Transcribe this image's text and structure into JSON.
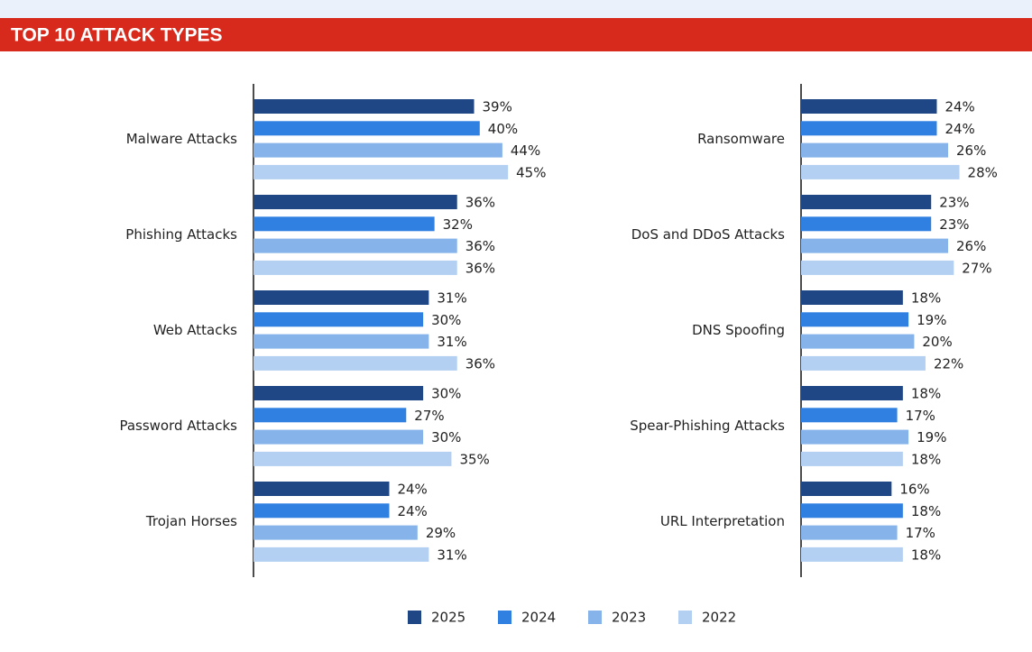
{
  "title": "TOP 10 ATTACK TYPES",
  "chart_data": [
    {
      "type": "barh",
      "categories": [
        "Malware Attacks",
        "Phishing Attacks",
        "Web Attacks",
        "Password Attacks",
        "Trojan Horses"
      ],
      "series": [
        {
          "name": "2025",
          "color": "#1f4785",
          "values": [
            39,
            36,
            31,
            30,
            24
          ],
          "value_labels": [
            "39%",
            "36%",
            "31%",
            "30%",
            "24%"
          ]
        },
        {
          "name": "2024",
          "color": "#2f80e0",
          "values": [
            40,
            32,
            30,
            27,
            24
          ],
          "value_labels": [
            "40%",
            "32%",
            "30%",
            "27%",
            "24%"
          ]
        },
        {
          "name": "2023",
          "color": "#85b3ea",
          "values": [
            44,
            36,
            31,
            30,
            29
          ],
          "value_labels": [
            "44%",
            "36%",
            "31%",
            "30%",
            "29%"
          ]
        },
        {
          "name": "2022",
          "color": "#b3d0f2",
          "values": [
            45,
            36,
            36,
            35,
            31
          ],
          "value_labels": [
            "45%",
            "36%",
            "36%",
            "35%",
            "31%"
          ]
        }
      ]
    },
    {
      "type": "barh",
      "categories": [
        "Ransomware",
        "DoS and DDoS Attacks",
        "DNS Spoofing",
        "Spear-Phishing Attacks",
        "URL Interpretation"
      ],
      "series": [
        {
          "color": "#1f4785",
          "values": [
            24,
            23,
            18,
            18,
            16
          ],
          "value_labels": [
            "24%",
            "23%",
            "18%",
            "18%",
            "16%"
          ]
        },
        {
          "color": "#2f80e0",
          "values": [
            24,
            23,
            19,
            17,
            18
          ],
          "value_labels": [
            "24%",
            "23%",
            "19%",
            "17%",
            "18%"
          ]
        },
        {
          "color": "#85b3ea",
          "values": [
            26,
            26,
            20,
            19,
            17
          ],
          "value_labels": [
            "26%",
            "26%",
            "20%",
            "19%",
            "17%"
          ]
        },
        {
          "color": "#b3d0f2",
          "values": [
            28,
            27,
            22,
            18,
            18
          ],
          "value_labels": [
            "28%",
            "27%",
            "22%",
            "18%",
            "18%"
          ]
        }
      ]
    }
  ]
}
